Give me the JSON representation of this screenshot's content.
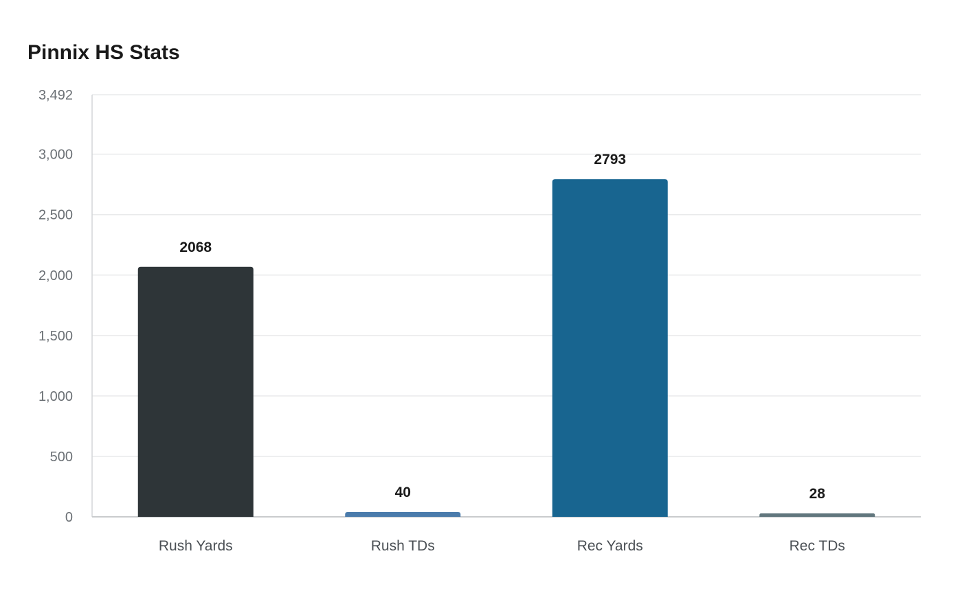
{
  "chart_data": {
    "type": "bar",
    "title": "Pinnix HS Stats",
    "categories": [
      "Rush Yards",
      "Rush TDs",
      "Rec Yards",
      "Rec TDs"
    ],
    "values": [
      2068,
      40,
      2793,
      28
    ],
    "data_labels": [
      "2068",
      "40",
      "2793",
      "28"
    ],
    "colors": [
      "#2e3538",
      "#4a7bab",
      "#186590",
      "#61767d"
    ],
    "xlabel": "",
    "ylabel": "",
    "ylim": [
      0,
      3492
    ],
    "yticks": [
      0,
      500,
      1000,
      1500,
      2000,
      2500,
      3000,
      3492
    ],
    "ytick_labels": [
      "0",
      "500",
      "1,000",
      "1,500",
      "2,000",
      "2,500",
      "3,000",
      "3,492"
    ],
    "grid": true,
    "legend": "none"
  }
}
